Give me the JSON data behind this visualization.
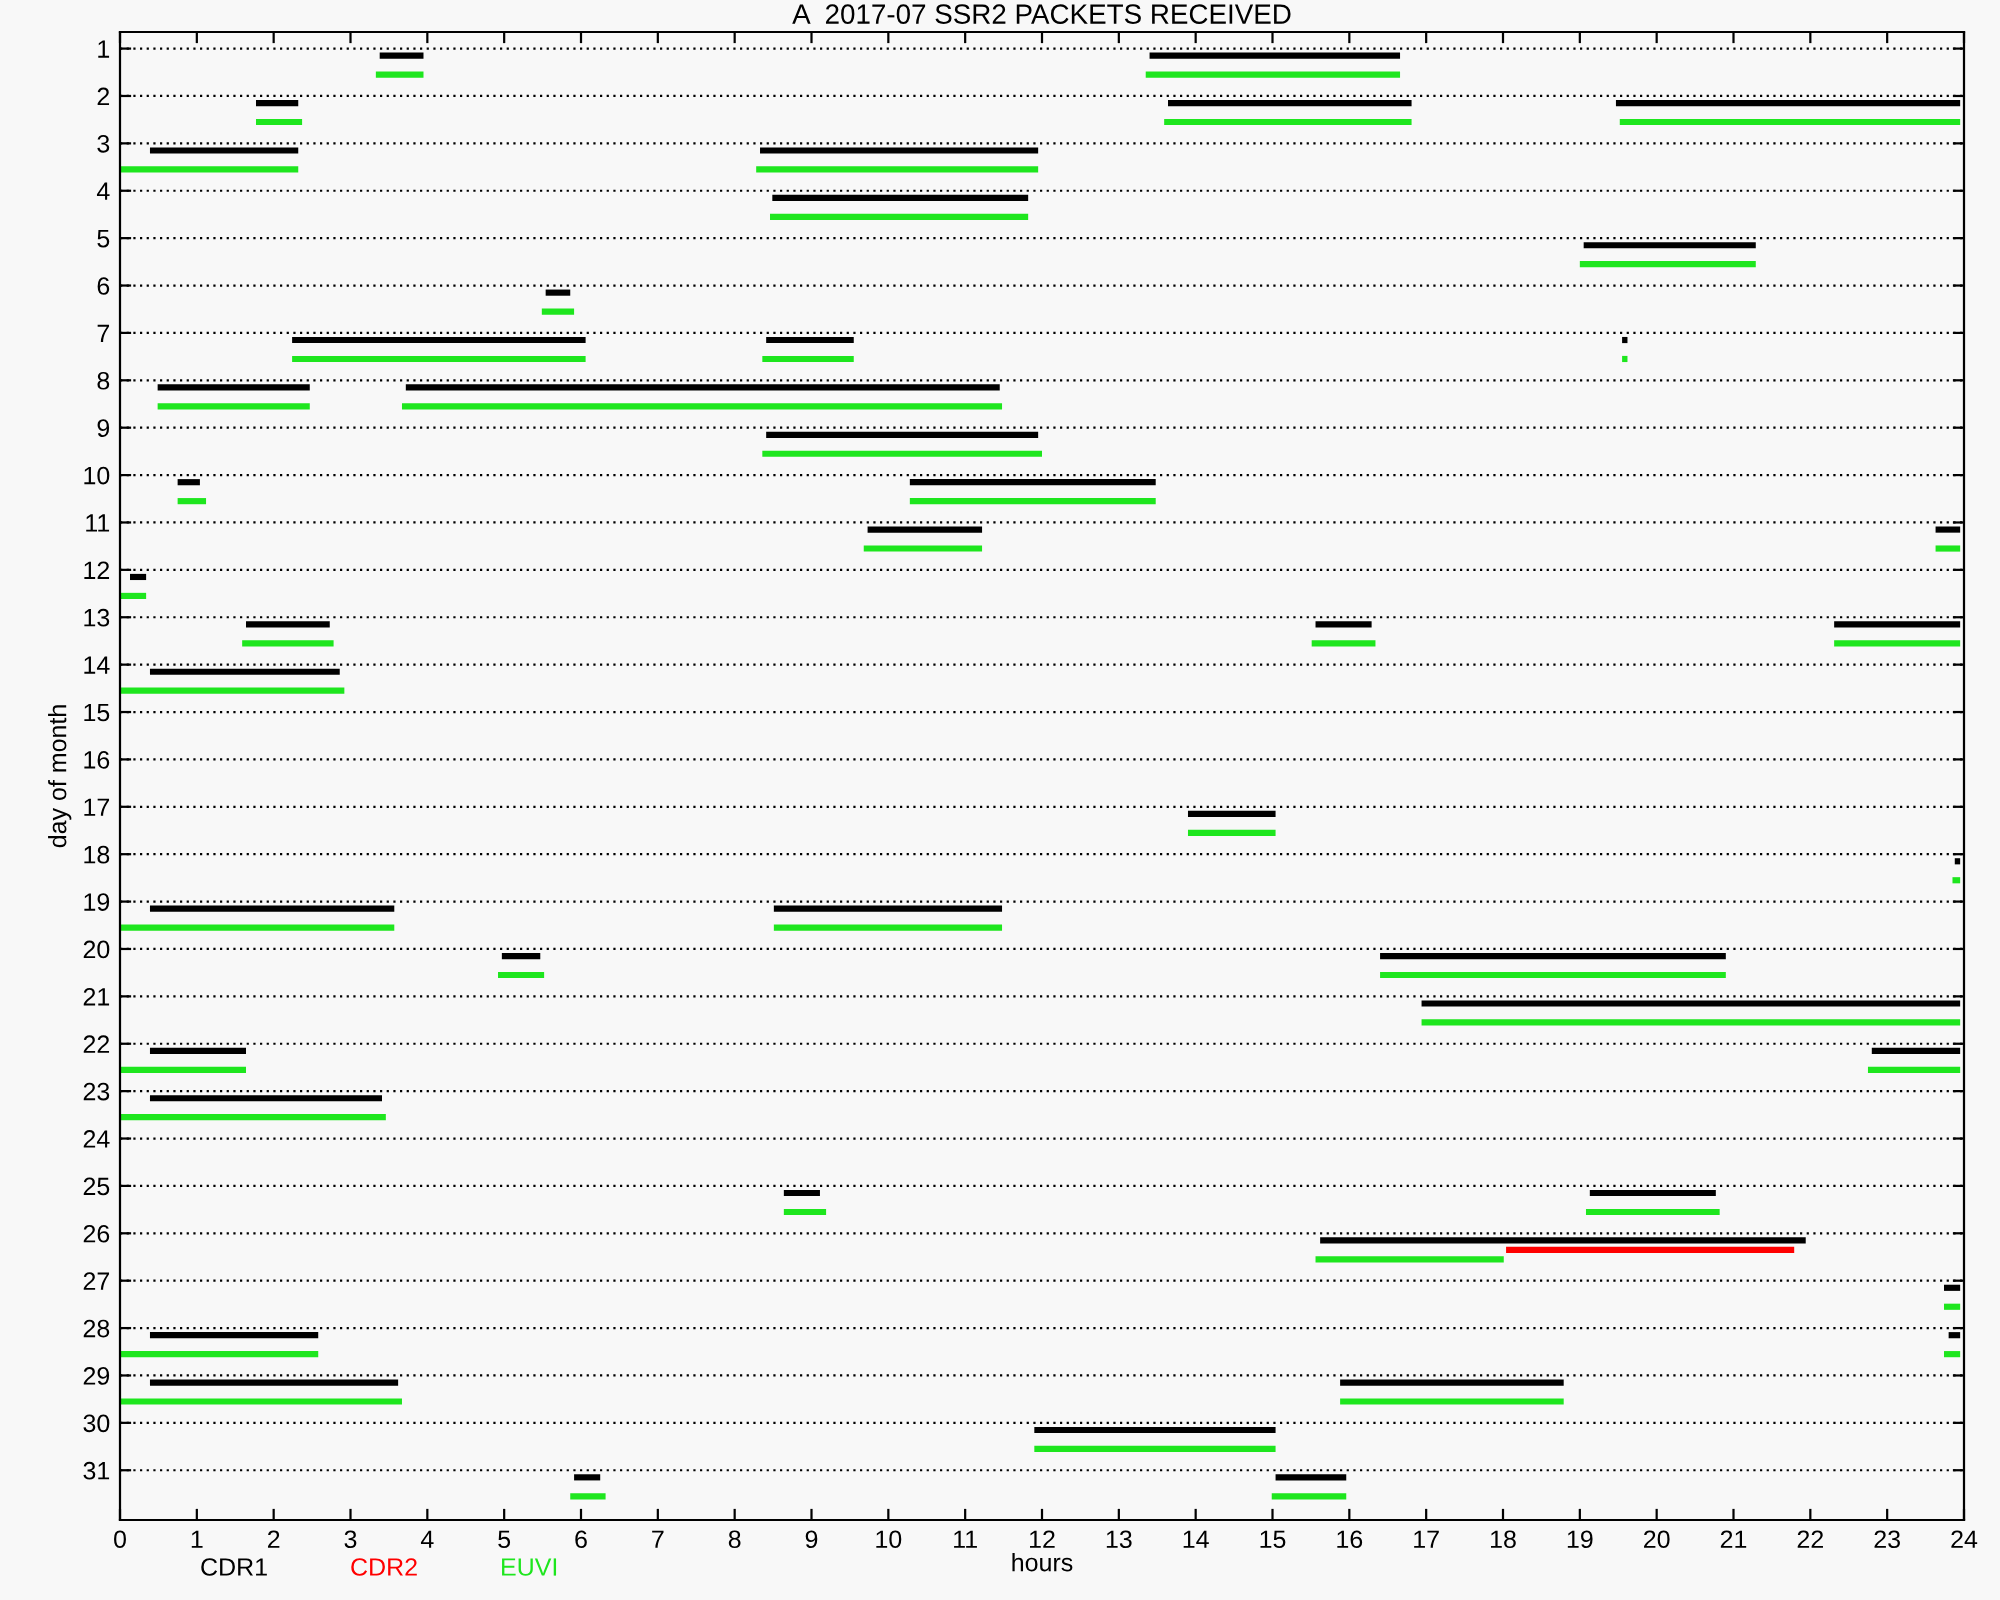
{
  "chart_data": {
    "type": "bar",
    "orientation": "horizontal",
    "title": "A  2017-07 SSR2 PACKETS RECEIVED",
    "xlabel": "hours",
    "ylabel": "day of month",
    "categories": [
      "1",
      "2",
      "3",
      "4",
      "5",
      "6",
      "7",
      "8",
      "9",
      "10",
      "11",
      "12",
      "13",
      "14",
      "15",
      "16",
      "17",
      "18",
      "19",
      "20",
      "21",
      "22",
      "23",
      "24",
      "25",
      "26",
      "27",
      "28",
      "29",
      "30",
      "31"
    ],
    "xlim": [
      0,
      24
    ],
    "xticks": [
      0,
      1,
      2,
      3,
      4,
      5,
      6,
      7,
      8,
      9,
      10,
      11,
      12,
      13,
      14,
      15,
      16,
      17,
      18,
      19,
      20,
      21,
      22,
      23,
      24
    ],
    "grid": "y",
    "legend": "bottom left",
    "series": [
      {
        "name": "CDR1",
        "color": "#000000",
        "base": [
          3.38,
          1.77,
          0.39,
          8.49,
          19.05,
          5.54,
          2.24,
          0.49,
          8.41,
          0.75,
          9.73,
          0.13,
          1.64,
          0.39,
          null,
          null,
          13.9,
          23.88,
          0.39,
          4.97,
          16.94,
          0.39,
          0.39,
          null,
          8.64,
          15.62,
          23.74,
          0.39,
          0.39,
          11.9,
          5.91
        ],
        "values": [
          0.57,
          0.55,
          1.93,
          3.33,
          2.24,
          0.32,
          3.82,
          1.98,
          3.54,
          0.29,
          1.49,
          0.21,
          1.09,
          2.47,
          null,
          null,
          1.14,
          0.07,
          3.18,
          0.5,
          7.01,
          1.25,
          3.02,
          null,
          0.47,
          6.32,
          0.21,
          2.19,
          3.23,
          3.14,
          0.34
        ]
      },
      {
        "color": "#000000",
        "base": [
          13.4,
          13.64,
          8.33,
          null,
          null,
          null,
          8.41,
          3.72,
          null,
          10.28,
          23.63,
          null,
          15.56,
          null,
          null,
          null,
          null,
          null,
          8.51,
          16.4,
          null,
          22.8,
          null,
          null,
          19.13,
          null,
          null,
          23.8,
          15.88,
          null,
          15.04
        ],
        "values": [
          3.26,
          3.17,
          3.62,
          null,
          null,
          null,
          1.14,
          7.73,
          null,
          3.2,
          0.32,
          null,
          0.73,
          null,
          null,
          null,
          null,
          null,
          2.97,
          4.5,
          null,
          1.15,
          null,
          null,
          1.64,
          null,
          null,
          0.15,
          2.91,
          null,
          0.92
        ]
      },
      {
        "color": "#000000",
        "base": [
          null,
          19.47,
          null,
          null,
          null,
          null,
          19.55,
          null,
          null,
          null,
          null,
          null,
          22.31,
          null,
          null,
          null,
          null,
          null,
          null,
          null,
          null,
          null,
          null,
          null,
          null,
          null,
          null,
          null,
          null,
          null,
          null
        ],
        "values": [
          null,
          4.48,
          null,
          null,
          null,
          null,
          0.07,
          null,
          null,
          null,
          null,
          null,
          1.64,
          null,
          null,
          null,
          null,
          null,
          null,
          null,
          null,
          null,
          null,
          null,
          null,
          null,
          null,
          null,
          null,
          null,
          null
        ]
      },
      {
        "name": "CDR2",
        "color": "#ff0000",
        "base": [
          null,
          null,
          null,
          null,
          null,
          null,
          null,
          null,
          null,
          null,
          null,
          null,
          null,
          null,
          null,
          null,
          null,
          null,
          null,
          null,
          null,
          null,
          null,
          null,
          null,
          18.04,
          null,
          null,
          null,
          null,
          null
        ],
        "values": [
          null,
          null,
          null,
          null,
          null,
          null,
          null,
          null,
          null,
          null,
          null,
          null,
          null,
          null,
          null,
          null,
          null,
          null,
          null,
          null,
          null,
          null,
          null,
          null,
          null,
          3.75,
          null,
          null,
          null,
          null,
          null
        ]
      },
      {
        "name": "EUVI",
        "color": "#1ee61e",
        "base": [
          3.33,
          1.77,
          0,
          8.46,
          19.0,
          5.49,
          2.24,
          0.49,
          8.36,
          0.75,
          9.68,
          0,
          1.59,
          0,
          null,
          null,
          13.9,
          23.85,
          0,
          4.92,
          16.94,
          0,
          0,
          null,
          8.64,
          15.56,
          23.74,
          0,
          0,
          11.9,
          5.86
        ],
        "values": [
          0.62,
          0.6,
          2.32,
          3.36,
          2.29,
          0.42,
          3.82,
          1.98,
          3.64,
          0.37,
          1.54,
          0.34,
          1.19,
          2.92,
          null,
          null,
          1.14,
          0.1,
          3.57,
          0.6,
          7.01,
          1.64,
          3.46,
          null,
          0.55,
          2.45,
          0.21,
          2.58,
          3.67,
          3.14,
          0.46
        ]
      },
      {
        "color": "#1ee61e",
        "base": [
          13.35,
          13.59,
          8.28,
          null,
          null,
          null,
          8.36,
          3.67,
          null,
          10.28,
          23.63,
          null,
          15.51,
          null,
          null,
          null,
          null,
          null,
          8.51,
          16.4,
          null,
          22.75,
          null,
          null,
          19.08,
          null,
          null,
          23.74,
          15.88,
          null,
          14.99
        ],
        "values": [
          3.31,
          3.22,
          3.67,
          null,
          null,
          null,
          1.19,
          7.81,
          null,
          3.2,
          0.32,
          null,
          0.83,
          null,
          null,
          null,
          null,
          null,
          2.97,
          4.5,
          null,
          1.2,
          null,
          null,
          1.74,
          null,
          null,
          0.21,
          2.91,
          null,
          0.97
        ]
      },
      {
        "color": "#1ee61e",
        "base": [
          null,
          19.52,
          null,
          null,
          null,
          null,
          19.55,
          null,
          null,
          null,
          null,
          null,
          22.31,
          null,
          null,
          null,
          null,
          null,
          null,
          null,
          null,
          null,
          null,
          null,
          null,
          null,
          null,
          null,
          null,
          null,
          null
        ],
        "values": [
          null,
          4.43,
          null,
          null,
          null,
          null,
          0.07,
          null,
          null,
          null,
          null,
          null,
          1.64,
          null,
          null,
          null,
          null,
          null,
          null,
          null,
          null,
          null,
          null,
          null,
          null,
          null,
          null,
          null,
          null,
          null,
          null
        ]
      }
    ]
  }
}
